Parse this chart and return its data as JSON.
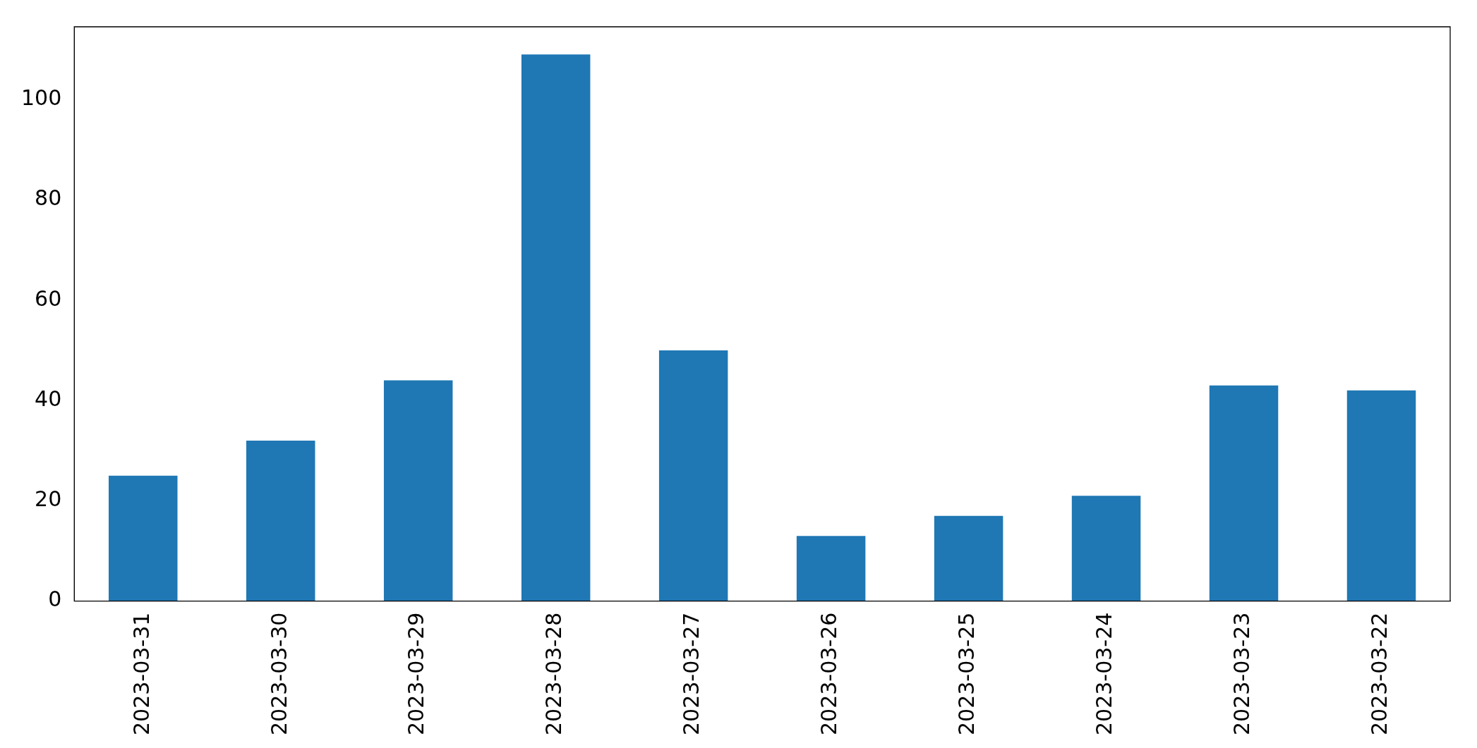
{
  "chart_data": {
    "type": "bar",
    "categories": [
      "2023-03-31",
      "2023-03-30",
      "2023-03-29",
      "2023-03-28",
      "2023-03-27",
      "2023-03-26",
      "2023-03-25",
      "2023-03-24",
      "2023-03-23",
      "2023-03-22"
    ],
    "values": [
      25,
      32,
      44,
      109,
      50,
      13,
      17,
      21,
      43,
      42
    ],
    "color": "#1f77b4",
    "ylim": [
      0,
      114.5
    ],
    "yticks": [
      0,
      20,
      40,
      60,
      80,
      100
    ],
    "grid": false,
    "legend": false
  }
}
